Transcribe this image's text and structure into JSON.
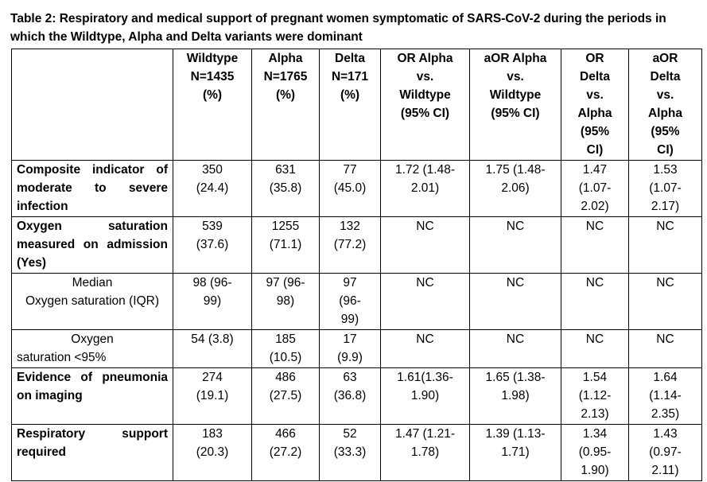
{
  "caption": "Table 2: Respiratory and medical support of pregnant women symptomatic of SARS-CoV-2 during the periods in which the Wildtype, Alpha and Delta variants were dominant",
  "header": {
    "c1": [
      "Wildtype",
      "N=1435",
      "(%)"
    ],
    "c2": [
      "Alpha",
      "N=1765",
      "(%)"
    ],
    "c3": [
      "Delta",
      "N=171",
      "(%)"
    ],
    "c4": [
      "OR Alpha",
      "vs.",
      "Wildtype",
      "(95% CI)"
    ],
    "c5": [
      "aOR Alpha",
      "vs.",
      "Wildtype",
      "(95% CI)"
    ],
    "c6": [
      "OR",
      "Delta",
      "vs.",
      "Alpha",
      "(95%",
      "CI)"
    ],
    "c7": [
      "aOR",
      "Delta",
      "vs.",
      "Alpha",
      "(95%",
      "CI)"
    ]
  },
  "rows": [
    {
      "label": [
        "Composite indicator of",
        "moderate to severe",
        "infection"
      ],
      "cells": [
        [
          "350",
          "(24.4)"
        ],
        [
          "631",
          "(35.8)"
        ],
        [
          "77",
          "(45.0)"
        ],
        [
          "1.72 (1.48-",
          "2.01)"
        ],
        [
          "1.75 (1.48-",
          "2.06)"
        ],
        [
          "1.47",
          "(1.07-",
          "2.02)"
        ],
        [
          "1.53",
          "(1.07-",
          "2.17)"
        ]
      ]
    },
    {
      "label": [
        "Oxygen saturation",
        "measured on admission",
        "(Yes)"
      ],
      "cells": [
        [
          "539",
          "(37.6)"
        ],
        [
          "1255",
          "(71.1)"
        ],
        [
          "132",
          "(77.2)"
        ],
        [
          "NC"
        ],
        [
          "NC"
        ],
        [
          "NC"
        ],
        [
          "NC"
        ]
      ]
    },
    {
      "label": [
        "Median",
        "Oxygen saturation (IQR)"
      ],
      "cells": [
        [
          "98 (96-",
          "99)"
        ],
        [
          "97 (96-",
          "98)"
        ],
        [
          "97",
          "(96-",
          "99)"
        ],
        [
          "NC"
        ],
        [
          "NC"
        ],
        [
          "NC"
        ],
        [
          "NC"
        ]
      ]
    },
    {
      "label": [
        "Oxygen",
        "saturation <95%"
      ],
      "cells": [
        [
          "54 (3.8)"
        ],
        [
          "185",
          "(10.5)"
        ],
        [
          "17",
          "(9.9)"
        ],
        [
          "NC"
        ],
        [
          "NC"
        ],
        [
          "NC"
        ],
        [
          "NC"
        ]
      ]
    },
    {
      "label": [
        "Evidence of pneumonia",
        "on imaging"
      ],
      "cells": [
        [
          "274",
          "(19.1)"
        ],
        [
          "486",
          "(27.5)"
        ],
        [
          "63",
          "(36.8)"
        ],
        [
          "1.61(1.36-",
          "1.90)"
        ],
        [
          "1.65 (1.38-",
          "1.98)"
        ],
        [
          "1.54",
          "(1.12-",
          "2.13)"
        ],
        [
          "1.64",
          "(1.14-",
          "2.35)"
        ]
      ]
    },
    {
      "label": [
        "Respiratory support",
        "required"
      ],
      "cells": [
        [
          "183",
          "(20.3)"
        ],
        [
          "466",
          "(27.2)"
        ],
        [
          "52",
          "(33.3)"
        ],
        [
          "1.47 (1.21-",
          "1.78)"
        ],
        [
          "1.39 (1.13-",
          "1.71)"
        ],
        [
          "1.34",
          "(0.95-",
          "1.90)"
        ],
        [
          "1.43",
          "(0.97-",
          "2.11)"
        ]
      ]
    }
  ]
}
